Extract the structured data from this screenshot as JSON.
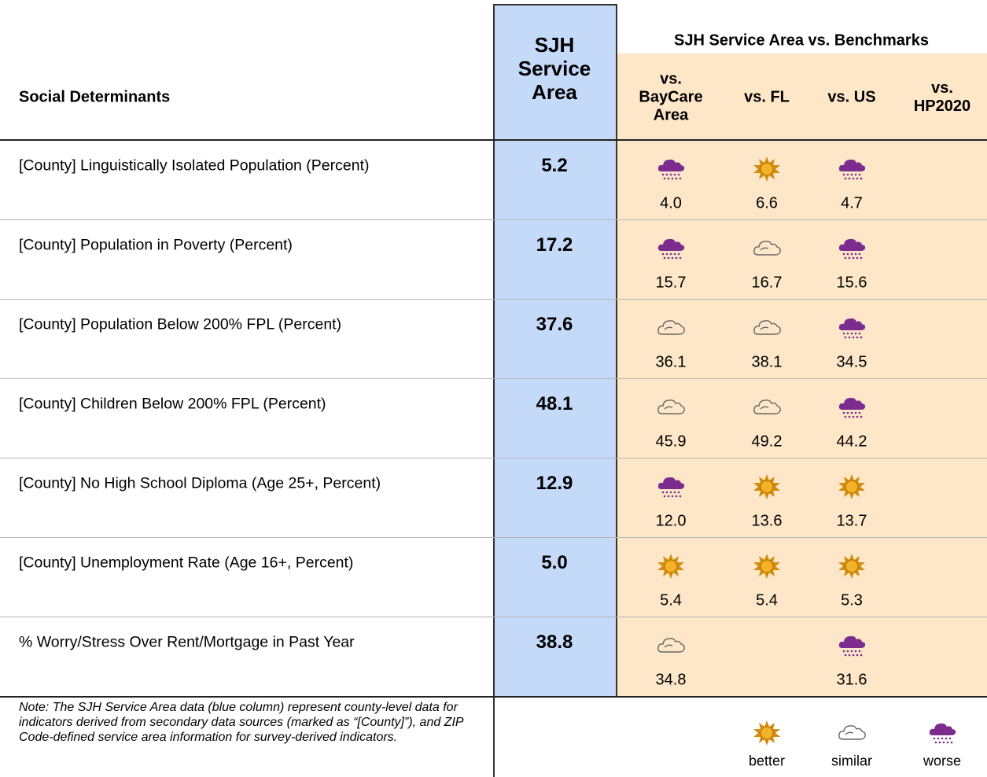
{
  "header": {
    "label_column": "Social Determinants",
    "service_area": "SJH Service Area",
    "benchmarks_title": "SJH Service Area vs. Benchmarks",
    "benchmark_columns": [
      "vs. BayCare Area",
      "vs. FL",
      "vs. US",
      "vs. HP2020"
    ]
  },
  "rows": [
    {
      "label": "[County] Linguistically Isolated Population (Percent)",
      "value": "5.2",
      "comparisons": [
        {
          "icon": "worse",
          "value": "4.0"
        },
        {
          "icon": "better",
          "value": "6.6"
        },
        {
          "icon": "worse",
          "value": "4.7"
        }
      ]
    },
    {
      "label": "[County] Population in Poverty (Percent)",
      "value": "17.2",
      "comparisons": [
        {
          "icon": "worse",
          "value": "15.7"
        },
        {
          "icon": "similar",
          "value": "16.7"
        },
        {
          "icon": "worse",
          "value": "15.6"
        }
      ]
    },
    {
      "label": "[County] Population Below 200% FPL (Percent)",
      "value": "37.6",
      "comparisons": [
        {
          "icon": "similar",
          "value": "36.1"
        },
        {
          "icon": "similar",
          "value": "38.1"
        },
        {
          "icon": "worse",
          "value": "34.5"
        }
      ]
    },
    {
      "label": "[County] Children Below 200% FPL (Percent)",
      "value": "48.1",
      "comparisons": [
        {
          "icon": "similar",
          "value": "45.9"
        },
        {
          "icon": "similar",
          "value": "49.2"
        },
        {
          "icon": "worse",
          "value": "44.2"
        }
      ]
    },
    {
      "label": "[County] No High School Diploma (Age 25+, Percent)",
      "value": "12.9",
      "comparisons": [
        {
          "icon": "worse",
          "value": "12.0"
        },
        {
          "icon": "better",
          "value": "13.6"
        },
        {
          "icon": "better",
          "value": "13.7"
        }
      ]
    },
    {
      "label": "[County] Unemployment Rate (Age 16+, Percent)",
      "value": "5.0",
      "comparisons": [
        {
          "icon": "better",
          "value": "5.4"
        },
        {
          "icon": "better",
          "value": "5.4"
        },
        {
          "icon": "better",
          "value": "5.3"
        }
      ]
    },
    {
      "label": "% Worry/Stress Over Rent/Mortgage in Past Year",
      "value": "38.8",
      "comparisons": [
        {
          "icon": "similar",
          "value": "34.8"
        },
        null,
        {
          "icon": "worse",
          "value": "31.6"
        }
      ]
    }
  ],
  "note": "Note: The SJH Service Area data (blue column) represent county-level data for indicators derived from secondary data sources (marked as “[County]”), and ZIP Code-defined service area information for survey-derived indicators.",
  "legend": [
    "better",
    "similar",
    "worse"
  ]
}
